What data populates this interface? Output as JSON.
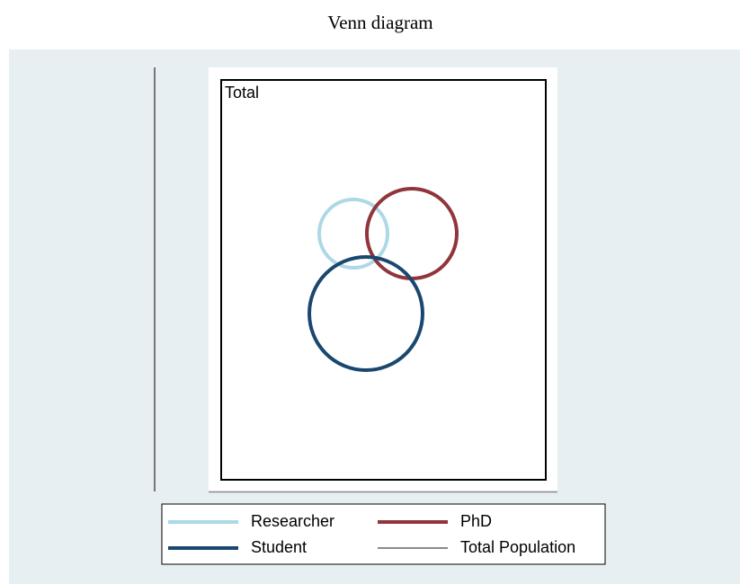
{
  "title": "Venn diagram",
  "plot": {
    "label": "Total"
  },
  "legend": [
    {
      "name": "Researcher",
      "color": "#add8e6"
    },
    {
      "name": "PhD",
      "color": "#90353b"
    },
    {
      "name": "Student",
      "color": "#1a476f"
    },
    {
      "name": "Total Population",
      "color": "#444444"
    }
  ]
}
